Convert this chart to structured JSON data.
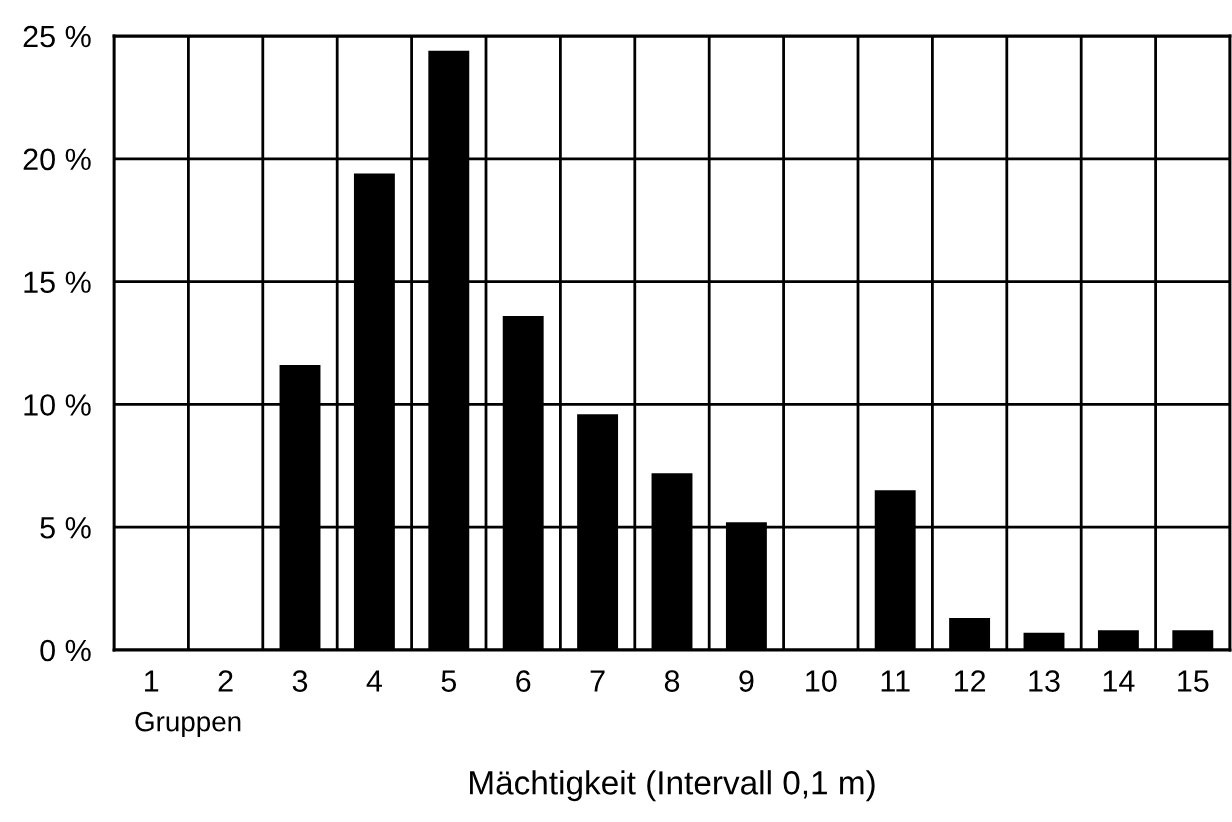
{
  "chart_data": {
    "type": "bar",
    "xlabel": "Mächtigkeit (Intervall 0,1 m)",
    "categories": [
      "1",
      "2",
      "3",
      "4",
      "5",
      "6",
      "7",
      "8",
      "9",
      "10",
      "11",
      "12",
      "13",
      "14",
      "15"
    ],
    "values": [
      0,
      0,
      11.6,
      19.4,
      24.4,
      13.6,
      9.6,
      7.2,
      5.2,
      0,
      6.5,
      1.3,
      0.7,
      0.8,
      0.8
    ],
    "color": "#000000",
    "ylim": [
      0,
      25
    ],
    "yticks": [
      {
        "value": 0,
        "label": "0 %"
      },
      {
        "value": 5,
        "label": "5 %"
      },
      {
        "value": 10,
        "label": "10 %"
      },
      {
        "value": 15,
        "label": "15 %"
      },
      {
        "value": 20,
        "label": "20 %"
      },
      {
        "value": 25,
        "label": "25 %"
      }
    ],
    "grid": true,
    "annotations": [
      "Gruppen"
    ]
  }
}
